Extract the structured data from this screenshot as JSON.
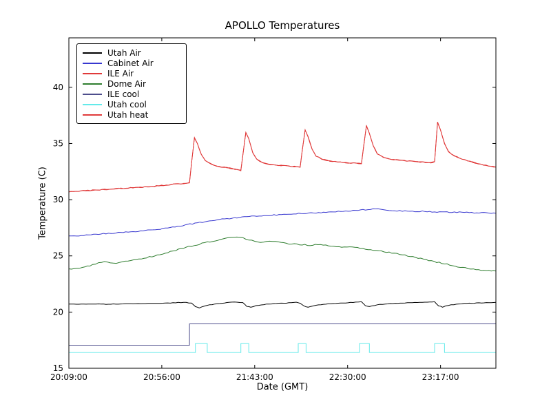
{
  "chart_data": {
    "type": "line",
    "title": "APOLLO Temperatures",
    "xlabel": "Date (GMT)",
    "ylabel": "Temperature (C)",
    "xlim": [
      0,
      216
    ],
    "ylim": [
      15,
      44.4
    ],
    "x_unit": "minutes after 20:09:00 GMT",
    "x_ticks": [
      {
        "t": 0,
        "label": "20:09:00"
      },
      {
        "t": 47,
        "label": "20:56:00"
      },
      {
        "t": 94,
        "label": "21:43:00"
      },
      {
        "t": 141,
        "label": "22:30:00"
      },
      {
        "t": 188,
        "label": "23:17:00"
      }
    ],
    "y_ticks": [
      15,
      20,
      25,
      30,
      35,
      40
    ],
    "grid": false,
    "legend_position": "upper-left",
    "series": [
      {
        "name": "Utah Air",
        "color": "#000000",
        "noise": 0.02,
        "points": [
          [
            0,
            20.7
          ],
          [
            10,
            20.72
          ],
          [
            20,
            20.7
          ],
          [
            30,
            20.74
          ],
          [
            40,
            20.76
          ],
          [
            50,
            20.8
          ],
          [
            58,
            20.86
          ],
          [
            62,
            20.8
          ],
          [
            64,
            20.5
          ],
          [
            66,
            20.38
          ],
          [
            70,
            20.6
          ],
          [
            75,
            20.74
          ],
          [
            80,
            20.84
          ],
          [
            85,
            20.9
          ],
          [
            88,
            20.84
          ],
          [
            90,
            20.52
          ],
          [
            92,
            20.45
          ],
          [
            96,
            20.62
          ],
          [
            100,
            20.7
          ],
          [
            105,
            20.76
          ],
          [
            110,
            20.8
          ],
          [
            115,
            20.86
          ],
          [
            117,
            20.8
          ],
          [
            119,
            20.52
          ],
          [
            121,
            20.45
          ],
          [
            125,
            20.62
          ],
          [
            130,
            20.7
          ],
          [
            135,
            20.78
          ],
          [
            140,
            20.82
          ],
          [
            145,
            20.87
          ],
          [
            148,
            20.9
          ],
          [
            150,
            20.56
          ],
          [
            152,
            20.5
          ],
          [
            156,
            20.65
          ],
          [
            160,
            20.72
          ],
          [
            165,
            20.78
          ],
          [
            170,
            20.82
          ],
          [
            175,
            20.85
          ],
          [
            180,
            20.88
          ],
          [
            185,
            20.9
          ],
          [
            187,
            20.56
          ],
          [
            189,
            20.45
          ],
          [
            192,
            20.6
          ],
          [
            196,
            20.7
          ],
          [
            200,
            20.76
          ],
          [
            205,
            20.8
          ],
          [
            210,
            20.83
          ],
          [
            216,
            20.86
          ]
        ]
      },
      {
        "name": "Cabinet Air",
        "color": "#3737cf",
        "noise": 0.045,
        "points": [
          [
            0,
            26.75
          ],
          [
            5,
            26.8
          ],
          [
            10,
            26.88
          ],
          [
            15,
            26.94
          ],
          [
            20,
            27.0
          ],
          [
            25,
            27.06
          ],
          [
            30,
            27.12
          ],
          [
            35,
            27.2
          ],
          [
            40,
            27.28
          ],
          [
            45,
            27.36
          ],
          [
            50,
            27.48
          ],
          [
            55,
            27.6
          ],
          [
            60,
            27.78
          ],
          [
            65,
            27.94
          ],
          [
            70,
            28.08
          ],
          [
            75,
            28.2
          ],
          [
            80,
            28.3
          ],
          [
            85,
            28.4
          ],
          [
            90,
            28.48
          ],
          [
            95,
            28.55
          ],
          [
            100,
            28.6
          ],
          [
            105,
            28.65
          ],
          [
            110,
            28.7
          ],
          [
            115,
            28.75
          ],
          [
            120,
            28.8
          ],
          [
            125,
            28.84
          ],
          [
            130,
            28.88
          ],
          [
            135,
            28.93
          ],
          [
            140,
            28.98
          ],
          [
            145,
            29.04
          ],
          [
            150,
            29.1
          ],
          [
            155,
            29.2
          ],
          [
            158,
            29.12
          ],
          [
            162,
            29.06
          ],
          [
            166,
            29.02
          ],
          [
            170,
            29.0
          ],
          [
            175,
            28.97
          ],
          [
            180,
            28.95
          ],
          [
            185,
            28.92
          ],
          [
            190,
            28.9
          ],
          [
            195,
            28.9
          ],
          [
            200,
            28.87
          ],
          [
            205,
            28.85
          ],
          [
            210,
            28.82
          ],
          [
            216,
            28.8
          ]
        ]
      },
      {
        "name": "ILE Air",
        "color": "#e03a3a",
        "noise": 0.04,
        "points": [
          [
            0,
            30.7
          ],
          [
            6,
            30.78
          ],
          [
            12,
            30.84
          ],
          [
            18,
            30.9
          ],
          [
            24,
            30.98
          ],
          [
            30,
            31.04
          ],
          [
            36,
            31.1
          ],
          [
            42,
            31.18
          ],
          [
            48,
            31.28
          ],
          [
            54,
            31.38
          ],
          [
            58,
            31.42
          ],
          [
            61,
            31.5
          ],
          [
            62,
            33.2
          ],
          [
            63.5,
            35.5
          ],
          [
            65,
            35.0
          ],
          [
            67,
            34.0
          ],
          [
            69,
            33.5
          ],
          [
            72,
            33.15
          ],
          [
            76,
            32.95
          ],
          [
            80,
            32.85
          ],
          [
            84,
            32.7
          ],
          [
            87,
            32.6
          ],
          [
            88,
            34.0
          ],
          [
            89.5,
            36.0
          ],
          [
            91,
            35.4
          ],
          [
            93,
            34.2
          ],
          [
            95,
            33.6
          ],
          [
            98,
            33.3
          ],
          [
            102,
            33.1
          ],
          [
            106,
            33.05
          ],
          [
            110,
            33.0
          ],
          [
            114,
            32.95
          ],
          [
            117,
            32.9
          ],
          [
            118,
            34.3
          ],
          [
            119.5,
            36.2
          ],
          [
            121,
            35.6
          ],
          [
            123,
            34.5
          ],
          [
            125,
            33.9
          ],
          [
            128,
            33.6
          ],
          [
            132,
            33.45
          ],
          [
            136,
            33.38
          ],
          [
            140,
            33.3
          ],
          [
            144,
            33.25
          ],
          [
            148,
            33.2
          ],
          [
            149,
            34.6
          ],
          [
            150.5,
            36.6
          ],
          [
            152,
            35.9
          ],
          [
            154,
            34.8
          ],
          [
            156,
            34.1
          ],
          [
            159,
            33.8
          ],
          [
            163,
            33.6
          ],
          [
            167,
            33.5
          ],
          [
            171,
            33.45
          ],
          [
            175,
            33.4
          ],
          [
            179,
            33.35
          ],
          [
            183,
            33.3
          ],
          [
            185,
            33.35
          ],
          [
            186.5,
            36.9
          ],
          [
            188,
            36.2
          ],
          [
            190,
            35.0
          ],
          [
            192,
            34.3
          ],
          [
            195,
            33.9
          ],
          [
            199,
            33.6
          ],
          [
            203,
            33.4
          ],
          [
            207,
            33.2
          ],
          [
            211,
            33.05
          ],
          [
            216,
            32.9
          ]
        ]
      },
      {
        "name": "Dome Air",
        "color": "#2e7d2e",
        "noise": 0.05,
        "points": [
          [
            0,
            23.8
          ],
          [
            4,
            23.9
          ],
          [
            8,
            24.0
          ],
          [
            12,
            24.2
          ],
          [
            15,
            24.35
          ],
          [
            18,
            24.45
          ],
          [
            21,
            24.38
          ],
          [
            24,
            24.35
          ],
          [
            27,
            24.45
          ],
          [
            30,
            24.58
          ],
          [
            34,
            24.7
          ],
          [
            38,
            24.8
          ],
          [
            42,
            24.95
          ],
          [
            46,
            25.1
          ],
          [
            50,
            25.3
          ],
          [
            54,
            25.5
          ],
          [
            58,
            25.68
          ],
          [
            62,
            25.88
          ],
          [
            66,
            26.05
          ],
          [
            70,
            26.2
          ],
          [
            74,
            26.35
          ],
          [
            78,
            26.5
          ],
          [
            82,
            26.65
          ],
          [
            85,
            26.7
          ],
          [
            88,
            26.58
          ],
          [
            91,
            26.4
          ],
          [
            94,
            26.3
          ],
          [
            97,
            26.22
          ],
          [
            100,
            26.26
          ],
          [
            103,
            26.3
          ],
          [
            106,
            26.2
          ],
          [
            110,
            26.1
          ],
          [
            114,
            26.05
          ],
          [
            118,
            26.0
          ],
          [
            122,
            25.95
          ],
          [
            126,
            26.0
          ],
          [
            130,
            25.92
          ],
          [
            134,
            25.86
          ],
          [
            138,
            25.8
          ],
          [
            142,
            25.8
          ],
          [
            146,
            25.7
          ],
          [
            150,
            25.6
          ],
          [
            154,
            25.5
          ],
          [
            158,
            25.42
          ],
          [
            162,
            25.3
          ],
          [
            166,
            25.18
          ],
          [
            170,
            25.05
          ],
          [
            174,
            24.9
          ],
          [
            178,
            24.75
          ],
          [
            182,
            24.6
          ],
          [
            186,
            24.45
          ],
          [
            190,
            24.3
          ],
          [
            194,
            24.15
          ],
          [
            198,
            24.0
          ],
          [
            202,
            23.9
          ],
          [
            206,
            23.8
          ],
          [
            210,
            23.72
          ],
          [
            216,
            23.65
          ]
        ]
      },
      {
        "name": "ILE cool",
        "color": "#4d4d8c",
        "noise": 0,
        "points": [
          [
            0,
            17.05
          ],
          [
            61,
            17.05
          ],
          [
            61,
            18.95
          ],
          [
            216,
            18.95
          ]
        ]
      },
      {
        "name": "Utah cool",
        "color": "#63eaea",
        "noise": 0,
        "points": [
          [
            0,
            16.4
          ],
          [
            64,
            16.4
          ],
          [
            64,
            17.2
          ],
          [
            70,
            17.2
          ],
          [
            70,
            16.4
          ],
          [
            87,
            16.4
          ],
          [
            87,
            17.2
          ],
          [
            91,
            17.2
          ],
          [
            91,
            16.4
          ],
          [
            116,
            16.4
          ],
          [
            116,
            17.2
          ],
          [
            120,
            17.2
          ],
          [
            120,
            16.4
          ],
          [
            147,
            16.4
          ],
          [
            147,
            17.2
          ],
          [
            152,
            17.2
          ],
          [
            152,
            16.4
          ],
          [
            185,
            16.4
          ],
          [
            185,
            17.2
          ],
          [
            190,
            17.2
          ],
          [
            190,
            16.4
          ],
          [
            216,
            16.4
          ]
        ]
      },
      {
        "name": "Utah heat",
        "color": "#e03a3a",
        "noise": 0.04,
        "points": [
          [
            0,
            30.7
          ],
          [
            6,
            30.78
          ],
          [
            12,
            30.84
          ],
          [
            18,
            30.9
          ],
          [
            24,
            30.98
          ],
          [
            30,
            31.04
          ],
          [
            36,
            31.1
          ],
          [
            42,
            31.18
          ],
          [
            48,
            31.28
          ],
          [
            54,
            31.38
          ],
          [
            58,
            31.42
          ],
          [
            61,
            31.5
          ],
          [
            62,
            33.2
          ],
          [
            63.5,
            35.5
          ],
          [
            65,
            35.0
          ],
          [
            67,
            34.0
          ],
          [
            69,
            33.5
          ],
          [
            72,
            33.15
          ],
          [
            76,
            32.95
          ],
          [
            80,
            32.85
          ],
          [
            84,
            32.7
          ],
          [
            87,
            32.6
          ],
          [
            88,
            34.0
          ],
          [
            89.5,
            36.0
          ],
          [
            91,
            35.4
          ],
          [
            93,
            34.2
          ],
          [
            95,
            33.6
          ],
          [
            98,
            33.3
          ],
          [
            102,
            33.1
          ],
          [
            106,
            33.05
          ],
          [
            110,
            33.0
          ],
          [
            114,
            32.95
          ],
          [
            117,
            32.9
          ],
          [
            118,
            34.3
          ],
          [
            119.5,
            36.2
          ],
          [
            121,
            35.6
          ],
          [
            123,
            34.5
          ],
          [
            125,
            33.9
          ],
          [
            128,
            33.6
          ],
          [
            132,
            33.45
          ],
          [
            136,
            33.38
          ],
          [
            140,
            33.3
          ],
          [
            144,
            33.25
          ],
          [
            148,
            33.2
          ],
          [
            149,
            34.6
          ],
          [
            150.5,
            36.6
          ],
          [
            152,
            35.9
          ],
          [
            154,
            34.8
          ],
          [
            156,
            34.1
          ],
          [
            159,
            33.8
          ],
          [
            163,
            33.6
          ],
          [
            167,
            33.5
          ],
          [
            171,
            33.45
          ],
          [
            175,
            33.4
          ],
          [
            179,
            33.35
          ],
          [
            183,
            33.3
          ],
          [
            185,
            33.35
          ],
          [
            186.5,
            36.9
          ],
          [
            188,
            36.2
          ],
          [
            190,
            35.0
          ],
          [
            192,
            34.3
          ],
          [
            195,
            33.9
          ],
          [
            199,
            33.6
          ],
          [
            203,
            33.4
          ],
          [
            207,
            33.2
          ],
          [
            211,
            33.05
          ],
          [
            216,
            32.9
          ]
        ]
      }
    ]
  }
}
